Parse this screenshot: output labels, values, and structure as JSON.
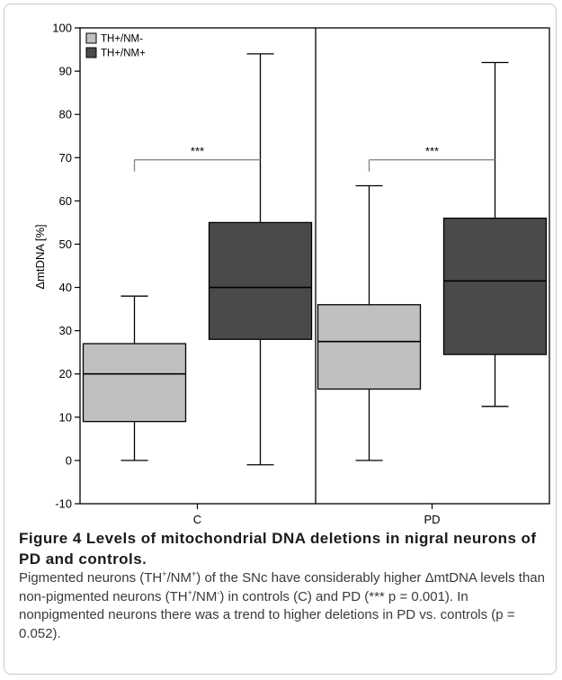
{
  "chart_data": {
    "type": "box",
    "y_axis": {
      "label": "ΔmtDNA [%]",
      "min": -10,
      "max": 100,
      "ticks": [
        -10,
        0,
        10,
        20,
        30,
        40,
        50,
        60,
        70,
        80,
        90,
        100
      ]
    },
    "groups": [
      "C",
      "PD"
    ],
    "legend": {
      "position": "top-left",
      "entries": [
        {
          "name": "TH+/NM-",
          "color": "#c0c0c0"
        },
        {
          "name": "TH+/NM+",
          "color": "#4a4a4a"
        }
      ]
    },
    "series": [
      {
        "name": "TH+/NM-",
        "color": "#c0c0c0",
        "boxes": [
          {
            "group": "C",
            "min": 0,
            "q1": 9,
            "median": 20,
            "q3": 27,
            "max": 38
          },
          {
            "group": "PD",
            "min": 0,
            "q1": 16.5,
            "median": 27.5,
            "q3": 36,
            "max": 63.5
          }
        ]
      },
      {
        "name": "TH+/NM+",
        "color": "#4a4a4a",
        "boxes": [
          {
            "group": "C",
            "min": -1,
            "q1": 28,
            "median": 40,
            "q3": 55,
            "max": 94
          },
          {
            "group": "PD",
            "min": 12.5,
            "q1": 24.5,
            "median": 41.5,
            "q3": 56,
            "max": 92
          }
        ]
      }
    ],
    "significance": [
      {
        "group": "C",
        "label": "***",
        "y": 69.5
      },
      {
        "group": "PD",
        "label": "***",
        "y": 69.5
      }
    ]
  },
  "caption": {
    "figure_label": "Figure 4",
    "title": "Levels of mitochondrial DNA deletions in nigral neurons of PD and controls",
    "sentence1_a": "Pigmented neurons (TH",
    "sentence1_b": "/NM",
    "sentence1_c": ") of the SNc have considerably higher ΔmtDNA levels than non-pigmented neurons (TH",
    "sentence1_d": "/NM",
    "sentence1_e": ") in controls (C) and PD (*** p = 0.001). In nonpigmented neurons there was a trend to higher deletions in PD vs. controls (p = 0.052).",
    "sup_plus": "+",
    "sup_minus": "-"
  }
}
